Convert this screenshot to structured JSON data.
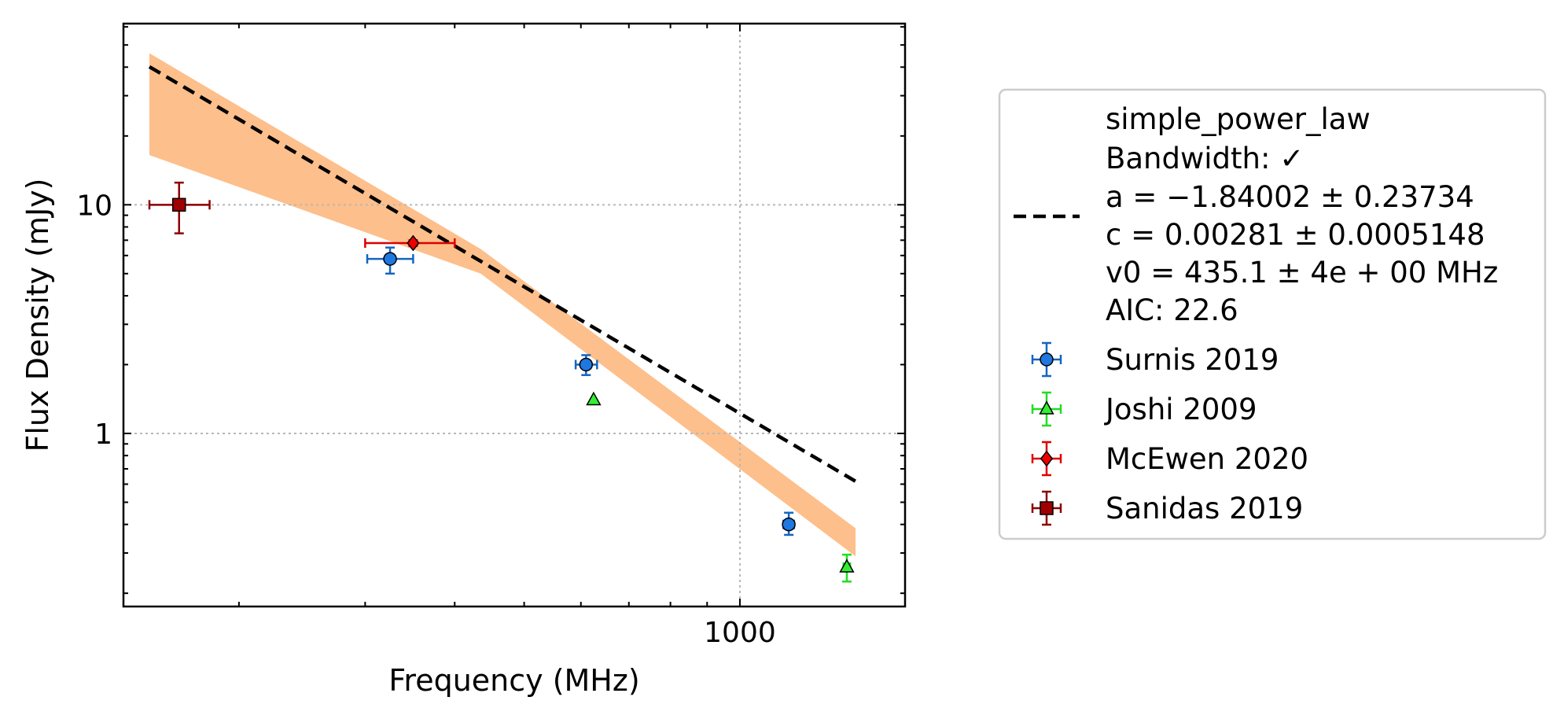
{
  "chart_data": {
    "type": "scatter",
    "xlabel": "Frequency (MHz)",
    "ylabel": "Flux Density (mJy)",
    "xscale": "log",
    "yscale": "log",
    "xlim": [
      138,
      1700
    ],
    "ylim": [
      0.175,
      62
    ],
    "x_tick_labels": [
      {
        "value": 1000,
        "label": "1000"
      }
    ],
    "x_minor_ticks": [
      200,
      300,
      400,
      500,
      600,
      700,
      800,
      900
    ],
    "y_tick_labels": [
      {
        "value": 10,
        "label": "10"
      },
      {
        "value": 1,
        "label": "1"
      }
    ],
    "y_minor_ticks": [
      0.2,
      0.3,
      0.4,
      0.5,
      0.6,
      0.7,
      0.8,
      0.9,
      2,
      3,
      4,
      5,
      6,
      7,
      8,
      9,
      20,
      30,
      40,
      50,
      60
    ],
    "grid": true,
    "legend_position": "outside-right",
    "fit": {
      "model": "simple_power_law",
      "a": -1.84002,
      "c": 0.00281,
      "v0": 435.1,
      "x_range": [
        150,
        1450
      ],
      "band_low": [
        [
          150,
          16.5
        ],
        [
          435,
          5.0
        ],
        [
          1450,
          0.29
        ]
      ],
      "band_high": [
        [
          150,
          46.0
        ],
        [
          435,
          6.4
        ],
        [
          1450,
          0.385
        ]
      ],
      "color": "#000000",
      "band_color": "#fdbf8b",
      "legend_lines": [
        "simple_power_law",
        "Bandwidth: ✓",
        "a = −1.84002 ± 0.23734",
        "c = 0.00281 ± 0.0005148",
        "v0 = 435.1 ± 4e + 00 MHz",
        "AIC: 22.6"
      ]
    },
    "series": [
      {
        "name": "Surnis 2019",
        "marker": "circle",
        "color": "#1565c0",
        "fill": "#1f77e0",
        "points": [
          {
            "x": 325,
            "y": 5.8,
            "xerr": [
              302,
              350
            ],
            "yerr": [
              5.0,
              6.5
            ]
          },
          {
            "x": 610,
            "y": 2.0,
            "xerr": [
              590,
              632
            ],
            "yerr": [
              1.8,
              2.2
            ]
          },
          {
            "x": 1170,
            "y": 0.4,
            "xerr": [
              1150,
              1190
            ],
            "yerr": [
              0.36,
              0.45
            ]
          }
        ]
      },
      {
        "name": "Joshi 2009",
        "marker": "triangle",
        "color": "#22dd22",
        "fill": "#33ee33",
        "points": [
          {
            "x": 625,
            "y": 1.4,
            "xerr": [
              625,
              625
            ],
            "yerr": [
              1.4,
              1.4
            ]
          },
          {
            "x": 1410,
            "y": 0.26,
            "xerr": [
              1395,
              1425
            ],
            "yerr": [
              0.225,
              0.295
            ]
          }
        ]
      },
      {
        "name": "McEwen 2020",
        "marker": "diamond",
        "color": "#dd0000",
        "fill": "#ee0000",
        "points": [
          {
            "x": 350,
            "y": 6.8,
            "xerr": [
              300,
              400
            ],
            "yerr": [
              6.6,
              7.0
            ]
          }
        ]
      },
      {
        "name": "Sanidas 2019",
        "marker": "square",
        "color": "#8b0000",
        "fill": "#a00000",
        "points": [
          {
            "x": 165,
            "y": 10.0,
            "xerr": [
              150,
              182
            ],
            "yerr": [
              7.5,
              12.5
            ]
          }
        ]
      }
    ]
  }
}
